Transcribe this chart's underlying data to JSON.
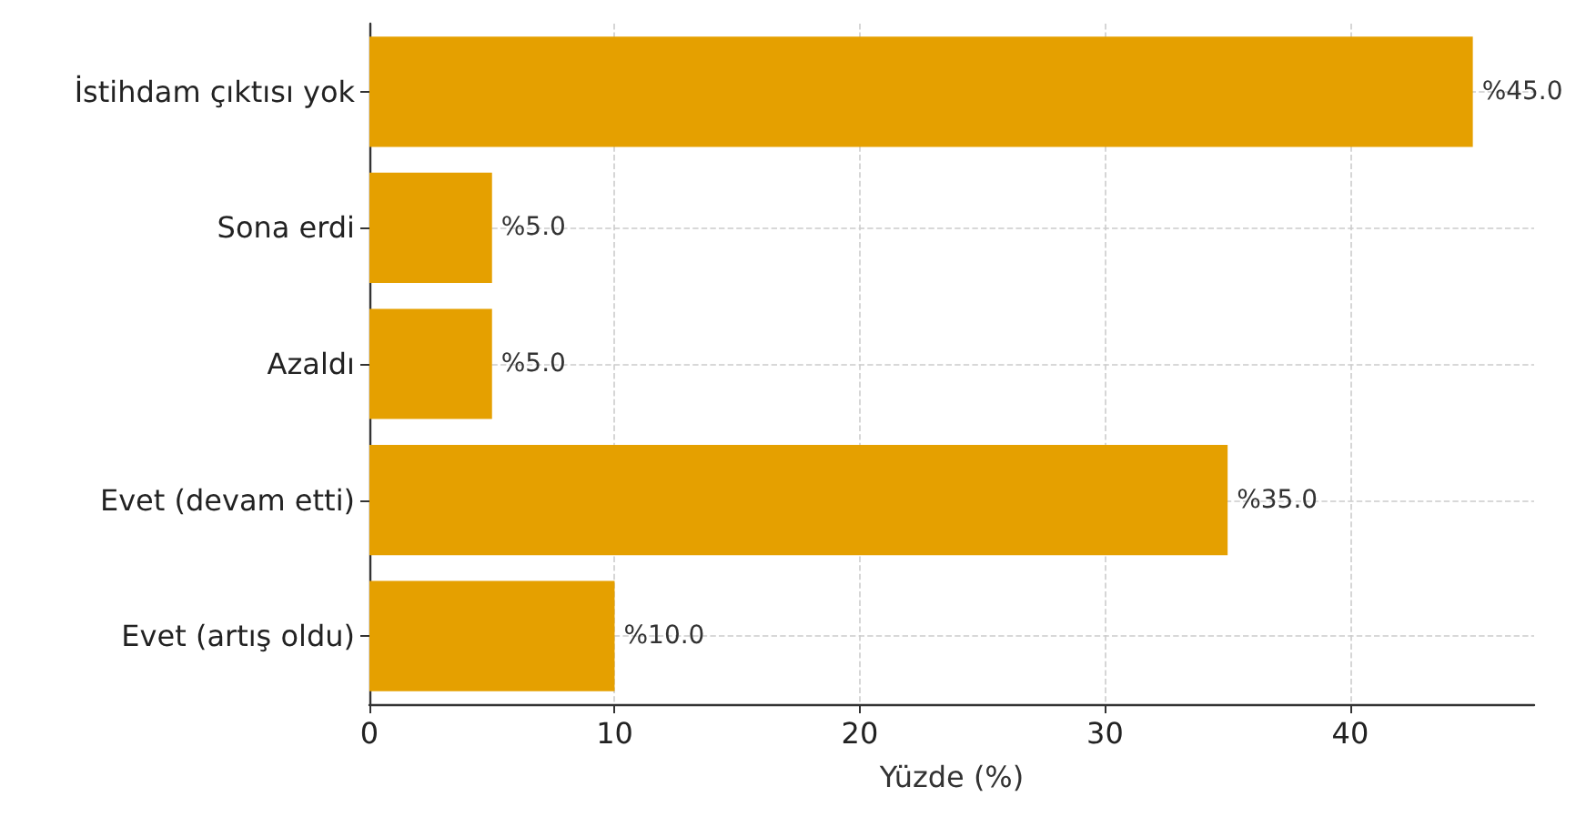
{
  "chart_data": {
    "type": "bar",
    "orientation": "horizontal",
    "xlabel": "Yüzde (%)",
    "categories": [
      "İstihdam çıktısı yok",
      "Sona erdi",
      "Azaldı",
      "Evet (devam etti)",
      "Evet (artış oldu)"
    ],
    "values": [
      45,
      5,
      5,
      35,
      10
    ],
    "value_labels": [
      "%45.0",
      "%5.0",
      "%5.0",
      "%35.0",
      "%10.0"
    ],
    "color": "#e5a000",
    "xlim": [
      0,
      47.5
    ],
    "xticks": [
      0,
      10,
      20,
      30,
      40
    ],
    "grid": true
  }
}
